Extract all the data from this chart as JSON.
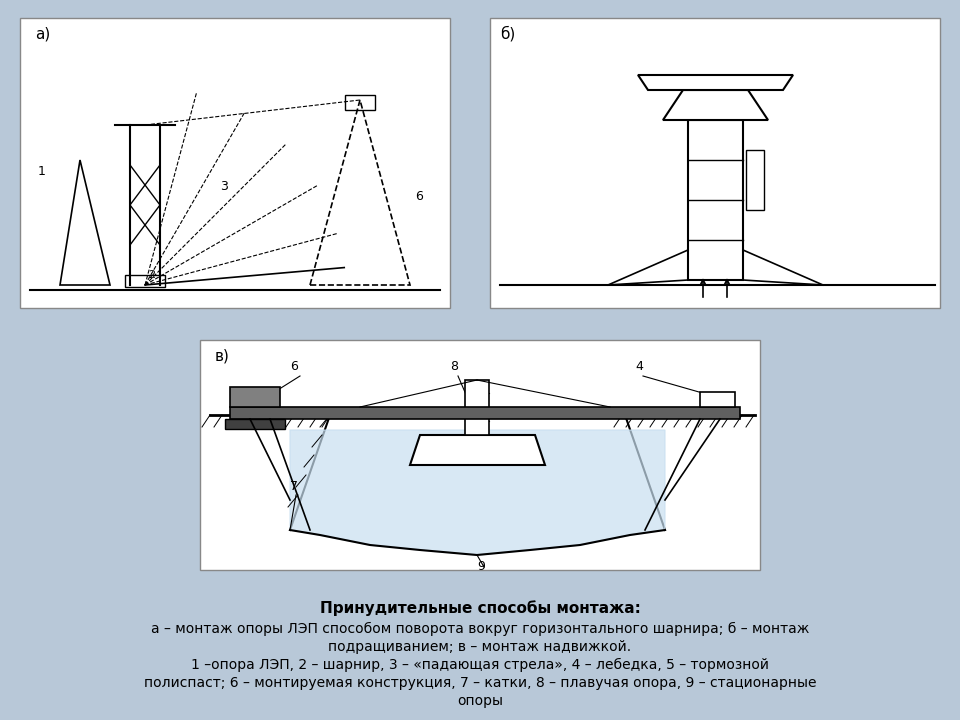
{
  "bg_color": "#b8c8d8",
  "panel_color": "#dce8f0",
  "line_color": "#000000",
  "title_text": "Принудительные способы монтажа:",
  "caption_line2": "а – монтаж опоры ЛЭП способом поворота вокруг горизонтального шарнира; б – монтаж",
  "caption_line3": "подращиванием; в – монтаж надвижкой.",
  "caption_line4": "1 –опора ЛЭП, 2 – шарнир, 3 – «падающая стрела», 4 – лебедка, 5 – тормозной",
  "caption_line5": "полиспаст; 6 – монтируемая конструкция, 7 – катки, 8 – плавучая опора, 9 – стационарные",
  "caption_line6": "опоры",
  "label_a": "а)",
  "label_b": "б)",
  "label_v": "в)"
}
